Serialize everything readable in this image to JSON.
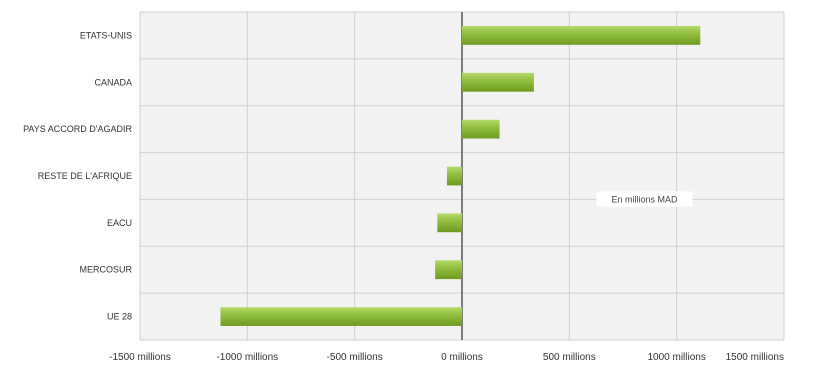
{
  "chart_data": {
    "type": "bar",
    "orientation": "horizontal",
    "categories": [
      "ETATS-UNIS",
      "CANADA",
      "PAYS ACCORD D'AGADIR",
      "RESTE DE L'AFRIQUE",
      "EACU",
      "MERCOSUR",
      "UE 28"
    ],
    "values": [
      1110,
      335,
      175,
      -70,
      -115,
      -125,
      -1125
    ],
    "x_ticks": [
      -1500,
      -1000,
      -500,
      0,
      500,
      1000,
      1500
    ],
    "x_tick_labels": [
      "-1500 millions",
      "-1000 millions",
      "-500 millions",
      "0 millions",
      "500 millions",
      "1000 millions",
      "1500 millions"
    ],
    "xlim": [
      -1500,
      1500
    ],
    "annotation": "En millions MAD",
    "grid": true,
    "colors": {
      "bar": "#8fbc3a",
      "bar_highlight": "#b4d96a",
      "bar_shadow": "#6e9a22",
      "plot_bg": "#f2f2f2",
      "grid": "#d0d0d0",
      "zero_line": "#555555"
    }
  }
}
